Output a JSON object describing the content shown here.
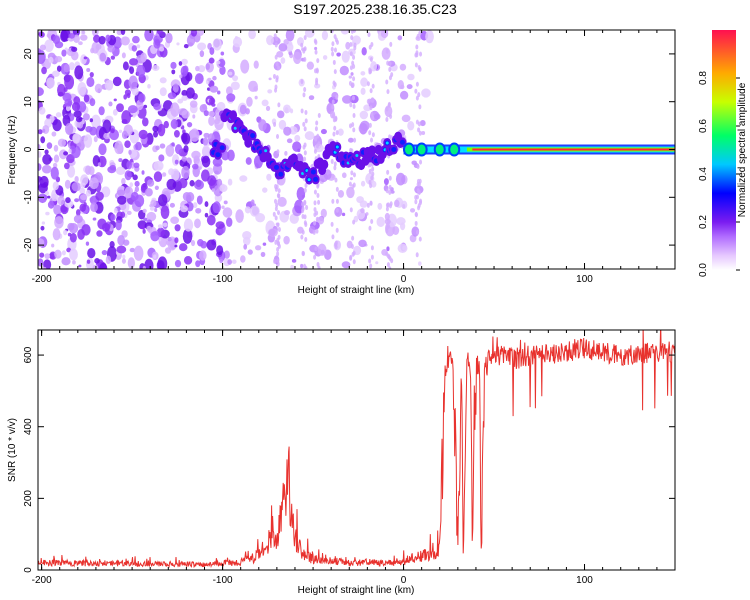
{
  "title": "S197.2025.238.16.35.C23",
  "chart_data": [
    {
      "type": "heatmap",
      "name": "spectrogram",
      "xlabel": "Height of straight line (km)",
      "ylabel": "Frequency (Hz)",
      "xlim": [
        -202,
        150
      ],
      "ylim": [
        -25,
        25
      ],
      "xticks": [
        -200,
        -100,
        0,
        100
      ],
      "yticks": [
        -20,
        -10,
        0,
        10,
        20
      ],
      "colorbar": {
        "label": "Normalized spectral amplitude",
        "range": [
          0,
          1
        ],
        "ticks": [
          0.0,
          0.2,
          0.4,
          0.6,
          0.8
        ]
      },
      "ridge": [
        {
          "x": -100,
          "y": 8
        },
        {
          "x": -90,
          "y": 5
        },
        {
          "x": -80,
          "y": 0
        },
        {
          "x": -70,
          "y": -4
        },
        {
          "x": -60,
          "y": -3
        },
        {
          "x": -50,
          "y": -6
        },
        {
          "x": -40,
          "y": 0
        },
        {
          "x": -30,
          "y": -2
        },
        {
          "x": -20,
          "y": -2
        },
        {
          "x": -10,
          "y": 0
        },
        {
          "x": 0,
          "y": 2
        },
        {
          "x": 10,
          "y": 0
        },
        {
          "x": 30,
          "y": 0
        },
        {
          "x": 150,
          "y": 0
        }
      ]
    },
    {
      "type": "line",
      "name": "snr",
      "xlabel": "Height of straight line (km)",
      "ylabel": "SNR (10 * v/v)",
      "xlim": [
        -202,
        150
      ],
      "ylim": [
        0,
        670
      ],
      "xticks": [
        -200,
        -100,
        0,
        100
      ],
      "yticks": [
        0,
        200,
        400,
        600
      ],
      "color": "#e8322e",
      "x": [
        -202,
        -150,
        -110,
        -90,
        -80,
        -75,
        -72,
        -70,
        -67,
        -64,
        -61,
        -58,
        -55,
        -50,
        -40,
        -30,
        -20,
        -10,
        0,
        10,
        18,
        20,
        23,
        25,
        27,
        30,
        32,
        33,
        35,
        37,
        38,
        40,
        42,
        43,
        45,
        46,
        47,
        50,
        60,
        80,
        100,
        120,
        150
      ],
      "y": [
        20,
        18,
        15,
        22,
        40,
        70,
        120,
        90,
        180,
        260,
        110,
        70,
        45,
        30,
        25,
        20,
        22,
        18,
        25,
        40,
        50,
        60,
        560,
        580,
        600,
        60,
        580,
        60,
        590,
        570,
        60,
        560,
        580,
        70,
        560,
        570,
        590,
        600,
        590,
        600,
        620,
        600,
        610
      ]
    }
  ]
}
